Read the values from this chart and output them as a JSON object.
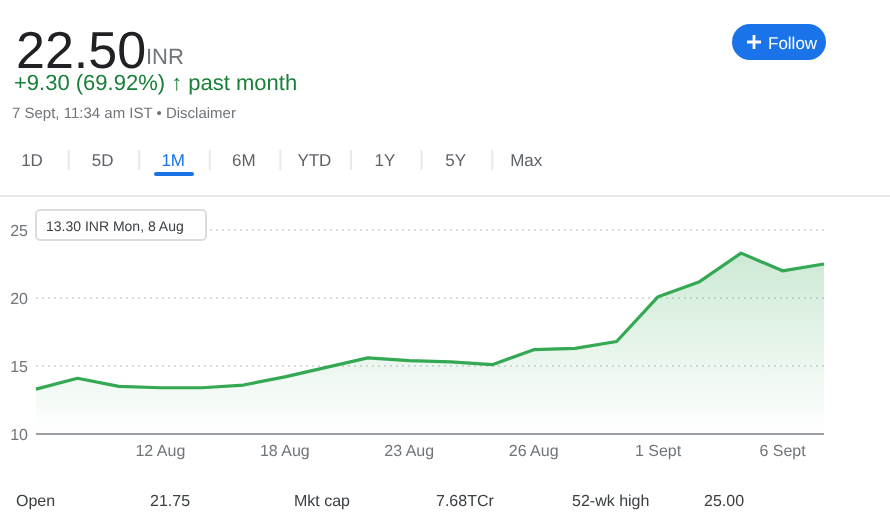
{
  "chart_data": {
    "type": "area",
    "title": "22.50",
    "subtitle": "+9.30 (69.92%) ↑ past month",
    "annotations": [
      "INR",
      "7 Sept, 11:34 am IST • Disclaimer",
      "Follow",
      "1D",
      "5D",
      "1M",
      "6M",
      "YTD",
      "1Y",
      "5Y",
      "Max",
      "13.30 INR  Mon, 8 Aug",
      "Open",
      "21.75",
      "Mkt cap",
      "7.68TCr",
      "52-wk high",
      "25.00"
    ],
    "categories": [
      null,
      null,
      null,
      "12 Aug",
      null,
      null,
      "18 Aug",
      null,
      null,
      "23 Aug",
      null,
      null,
      "26 Aug",
      null,
      null,
      "1 Sept",
      null,
      null,
      "6 Sept",
      null
    ],
    "series": [
      {
        "color": "#34a853",
        "values": [
          13.3,
          14.1,
          13.5,
          13.4,
          13.4,
          13.6,
          14.2,
          14.9,
          15.6,
          15.4,
          15.3,
          15.1,
          16.2,
          16.3,
          16.8,
          20.1,
          21.2,
          23.3,
          22.0,
          22.5
        ]
      }
    ],
    "ylim": [
      10,
      25
    ],
    "yticks": [
      10,
      15,
      20,
      25
    ],
    "grid": "y"
  }
}
